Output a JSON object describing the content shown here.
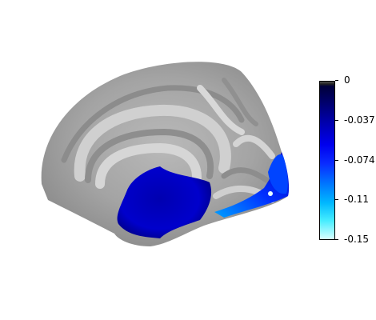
{
  "colorbar": {
    "colors": [
      "#000033",
      "#0000cc",
      "#0066ff",
      "#00ccff",
      "#e0ffff"
    ],
    "ticks": [
      {
        "value": 0,
        "label": "0"
      },
      {
        "value": -0.037,
        "label": "-0.037"
      },
      {
        "value": -0.074,
        "label": "-0.074"
      },
      {
        "value": -0.11,
        "label": "-0.11"
      },
      {
        "value": -0.15,
        "label": "-0.15"
      }
    ],
    "range": [
      -0.15,
      0
    ]
  }
}
